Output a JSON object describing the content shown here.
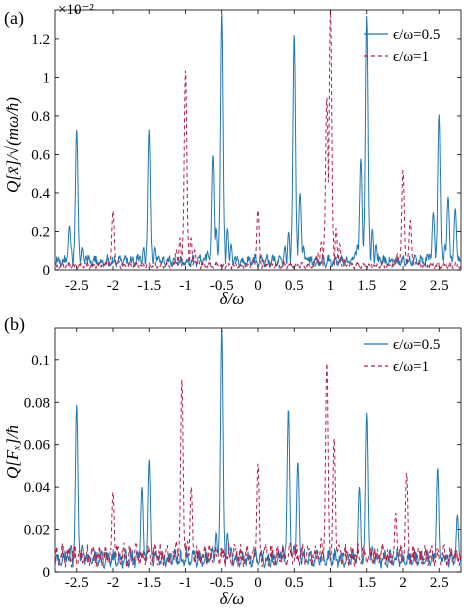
{
  "colors": {
    "series1": "#1f77b4",
    "series2": "#b22248",
    "axis": "#000000"
  },
  "chart_data": [
    {
      "type": "line",
      "panel_label": "(a)",
      "ylabel": "Q[x̄]/√(mω/ħ)",
      "xlabel": "δ/ω",
      "exponent_label": "×10⁻²",
      "xlim": [
        -2.8,
        2.8
      ],
      "ylim": [
        0,
        1.35
      ],
      "xticks": [
        -2.5,
        -2,
        -1.5,
        -1,
        -0.5,
        0,
        0.5,
        1,
        1.5,
        2,
        2.5
      ],
      "xtick_labels": [
        "-2.5",
        "-2",
        "-1.5",
        "-1",
        "-0.5",
        "0",
        "0.5",
        "1",
        "1.5",
        "2",
        "2.5"
      ],
      "yticks": [
        0,
        0.2,
        0.4,
        0.6,
        0.8,
        1,
        1.2
      ],
      "ytick_labels": [
        "0",
        "0.2",
        "0.4",
        "0.6",
        "0.8",
        "1",
        "1.2"
      ],
      "legend_position": "top-right",
      "series": [
        {
          "name": "ϵ/ω=0.5",
          "style": "solid",
          "peaks": [
            {
              "x": -2.5,
              "y": 0.73
            },
            {
              "x": -1.5,
              "y": 0.73
            },
            {
              "x": -0.5,
              "y": 1.34
            },
            {
              "x": 0.5,
              "y": 1.23
            },
            {
              "x": 1.5,
              "y": 1.32
            },
            {
              "x": 2.5,
              "y": 0.81
            },
            {
              "x": -2.6,
              "y": 0.23
            },
            {
              "x": -0.62,
              "y": 0.6
            },
            {
              "x": 0.58,
              "y": 0.4
            },
            {
              "x": 1.42,
              "y": 0.58
            },
            {
              "x": 2.42,
              "y": 0.3
            },
            {
              "x": 2.62,
              "y": 0.38
            },
            {
              "x": 2.72,
              "y": 0.32
            }
          ],
          "baseline": 0.06
        },
        {
          "name": "ϵ/ω=1",
          "style": "dashed",
          "peaks": [
            {
              "x": -2.0,
              "y": 0.31
            },
            {
              "x": -1.0,
              "y": 1.04
            },
            {
              "x": 0.0,
              "y": 0.31
            },
            {
              "x": 1.0,
              "y": 1.35
            },
            {
              "x": 0.95,
              "y": 0.9
            },
            {
              "x": 2.0,
              "y": 0.52
            },
            {
              "x": 2.1,
              "y": 0.26
            }
          ],
          "baseline": 0.03
        }
      ]
    },
    {
      "type": "line",
      "panel_label": "(b)",
      "ylabel": "Q[Fₓ]/ħ",
      "xlabel": "δ/ω",
      "xlim": [
        -2.8,
        2.8
      ],
      "ylim": [
        0,
        0.115
      ],
      "xticks": [
        -2.5,
        -2,
        -1.5,
        -1,
        -0.5,
        0,
        0.5,
        1,
        1.5,
        2,
        2.5
      ],
      "xtick_labels": [
        "-2.5",
        "-2",
        "-1.5",
        "-1",
        "-0.5",
        "0",
        "0.5",
        "1",
        "1.5",
        "2",
        "2.5"
      ],
      "yticks": [
        0,
        0.02,
        0.04,
        0.06,
        0.08,
        0.1
      ],
      "ytick_labels": [
        "0",
        "0.02",
        "0.04",
        "0.06",
        "0.08",
        "0.1"
      ],
      "legend_position": "top-right",
      "series": [
        {
          "name": "ϵ/ω=0.5",
          "style": "solid",
          "peaks": [
            {
              "x": -2.5,
              "y": 0.079
            },
            {
              "x": -1.5,
              "y": 0.053
            },
            {
              "x": -1.6,
              "y": 0.04
            },
            {
              "x": -0.5,
              "y": 0.115
            },
            {
              "x": 0.42,
              "y": 0.077
            },
            {
              "x": 0.55,
              "y": 0.052
            },
            {
              "x": 1.5,
              "y": 0.075
            },
            {
              "x": 1.4,
              "y": 0.04
            },
            {
              "x": 2.48,
              "y": 0.049
            },
            {
              "x": 2.75,
              "y": 0.027
            }
          ],
          "baseline": 0.008
        },
        {
          "name": "ϵ/ω=1",
          "style": "dashed",
          "peaks": [
            {
              "x": -2.0,
              "y": 0.038
            },
            {
              "x": -1.05,
              "y": 0.091
            },
            {
              "x": -0.92,
              "y": 0.04
            },
            {
              "x": 0.0,
              "y": 0.051
            },
            {
              "x": 0.95,
              "y": 0.099
            },
            {
              "x": 1.05,
              "y": 0.063
            },
            {
              "x": 2.05,
              "y": 0.047
            },
            {
              "x": 1.9,
              "y": 0.028
            }
          ],
          "baseline": 0.01
        }
      ]
    }
  ]
}
